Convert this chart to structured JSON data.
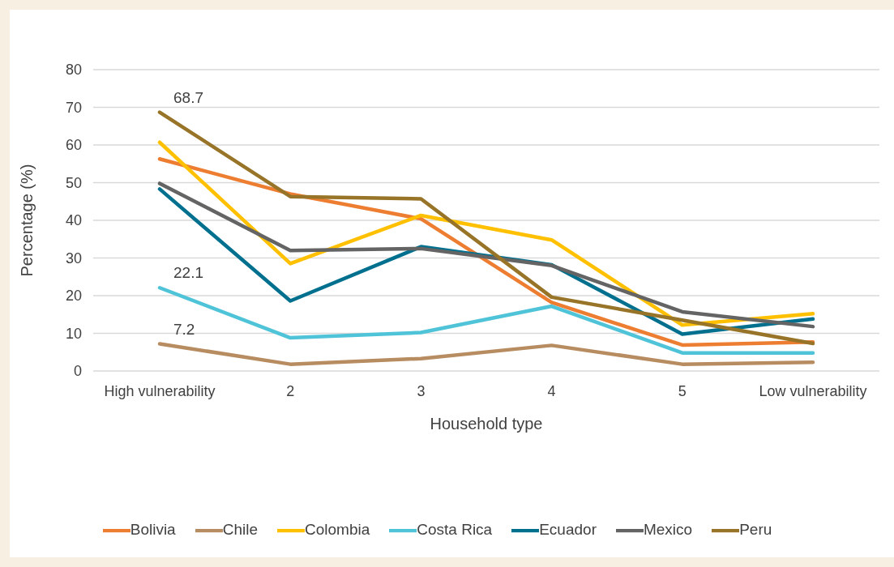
{
  "chart_data": {
    "type": "line",
    "xlabel": "Household type",
    "ylabel": "Percentage (%)",
    "categories": [
      "High vulnerability",
      "2",
      "3",
      "4",
      "5",
      "Low vulnerability"
    ],
    "series": [
      {
        "name": "Bolivia",
        "color": "#ed7d31",
        "values": [
          56.3,
          47.0,
          40.4,
          18.2,
          6.9,
          7.7
        ]
      },
      {
        "name": "Chile",
        "color": "#b88c61",
        "values": [
          7.2,
          1.8,
          3.3,
          6.8,
          1.8,
          2.3
        ]
      },
      {
        "name": "Colombia",
        "color": "#ffc000",
        "values": [
          60.7,
          28.5,
          41.3,
          34.8,
          12.2,
          15.2
        ]
      },
      {
        "name": "Costa Rica",
        "color": "#4fc3d7",
        "values": [
          22.1,
          8.8,
          10.2,
          17.2,
          4.8,
          4.8
        ]
      },
      {
        "name": "Ecuador",
        "color": "#00708e",
        "values": [
          48.3,
          18.6,
          33.0,
          28.2,
          9.8,
          13.8
        ]
      },
      {
        "name": "Mexico",
        "color": "#646464",
        "values": [
          49.8,
          32.0,
          32.5,
          28.0,
          15.7,
          11.8
        ]
      },
      {
        "name": "Peru",
        "color": "#977428",
        "values": [
          68.7,
          46.3,
          45.7,
          19.6,
          13.5,
          7.3
        ]
      }
    ],
    "ylim": [
      0,
      80
    ],
    "yticks": [
      0,
      10,
      20,
      30,
      40,
      50,
      60,
      70,
      80
    ],
    "grid": "y",
    "legend": "bottom",
    "marker": "none",
    "line_style": "solid",
    "annotations": [
      {
        "text": "68.7",
        "x": "High vulnerability",
        "y": 68.7
      },
      {
        "text": "22.1",
        "x": "High vulnerability",
        "y": 22.1
      },
      {
        "text": "7.2",
        "x": "High vulnerability",
        "y": 7.2
      }
    ]
  }
}
